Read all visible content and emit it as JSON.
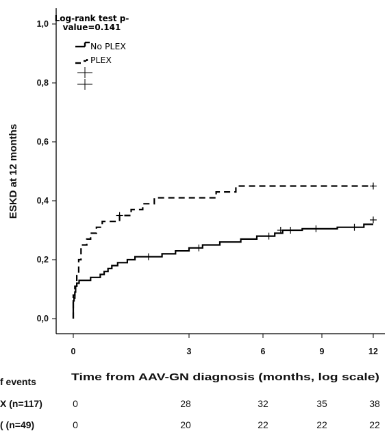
{
  "chart_data": {
    "type": "line",
    "ylabel": "ESKD at 12 months",
    "xlabel": "Time from AAV-GN diagnosis (months, log scale)",
    "xlim": [
      0,
      12
    ],
    "ylim": [
      0,
      1
    ],
    "x_ticks": [
      "0",
      "3",
      "6",
      "9",
      "12"
    ],
    "y_ticks": [
      "0,0",
      "0,2",
      "0,4",
      "0,6",
      "0,8",
      "1,0"
    ],
    "legend_title": "Log-rank test p-value=0.141",
    "legend": {
      "position": "top-left",
      "entries": [
        {
          "label": "No PLEX",
          "style": "solid"
        },
        {
          "label": "PLEX",
          "style": "dashed"
        },
        {
          "label": "",
          "style": "censor"
        },
        {
          "label": "",
          "style": "censor"
        }
      ]
    },
    "series": [
      {
        "name": "No PLEX",
        "style": "solid",
        "steps": [
          [
            0.0,
            0.0
          ],
          [
            0.0,
            0.06
          ],
          [
            0.02,
            0.07
          ],
          [
            0.04,
            0.09
          ],
          [
            0.06,
            0.11
          ],
          [
            0.09,
            0.12
          ],
          [
            0.15,
            0.13
          ],
          [
            0.45,
            0.14
          ],
          [
            0.7,
            0.15
          ],
          [
            0.8,
            0.16
          ],
          [
            0.9,
            0.17
          ],
          [
            1.0,
            0.18
          ],
          [
            1.15,
            0.19
          ],
          [
            1.4,
            0.2
          ],
          [
            1.6,
            0.21
          ],
          [
            2.3,
            0.22
          ],
          [
            2.65,
            0.23
          ],
          [
            3.0,
            0.24
          ],
          [
            3.55,
            0.25
          ],
          [
            4.25,
            0.26
          ],
          [
            5.1,
            0.27
          ],
          [
            5.75,
            0.28
          ],
          [
            6.6,
            0.29
          ],
          [
            7.0,
            0.3
          ],
          [
            8.0,
            0.305
          ],
          [
            9.9,
            0.31
          ],
          [
            11.45,
            0.32
          ]
        ],
        "end_x": 12.0,
        "censored": [
          [
            1.95,
            0.21
          ],
          [
            3.4,
            0.24
          ],
          [
            6.3,
            0.28
          ],
          [
            6.9,
            0.3
          ],
          [
            7.4,
            0.3
          ],
          [
            8.7,
            0.305
          ],
          [
            10.9,
            0.31
          ],
          [
            12.0,
            0.335
          ]
        ]
      },
      {
        "name": "PLEX",
        "style": "dashed",
        "steps": [
          [
            0.0,
            0.0
          ],
          [
            0.0,
            0.08
          ],
          [
            0.04,
            0.11
          ],
          [
            0.09,
            0.15
          ],
          [
            0.14,
            0.2
          ],
          [
            0.2,
            0.25
          ],
          [
            0.35,
            0.27
          ],
          [
            0.45,
            0.29
          ],
          [
            0.6,
            0.31
          ],
          [
            0.75,
            0.33
          ],
          [
            1.2,
            0.35
          ],
          [
            1.5,
            0.37
          ],
          [
            1.8,
            0.39
          ],
          [
            2.1,
            0.41
          ],
          [
            4.1,
            0.43
          ],
          [
            4.9,
            0.45
          ]
        ],
        "end_x": 12.0,
        "censored": [
          [
            1.2,
            0.35
          ],
          [
            12.0,
            0.45
          ]
        ]
      }
    ],
    "risk_table": {
      "title": "f events",
      "columns_x": [
        0,
        3,
        6,
        9,
        12
      ],
      "rows": [
        {
          "label": "X (n=117)",
          "values": [
            "0",
            "28",
            "32",
            "35",
            "38"
          ]
        },
        {
          "label": "( (n=49)",
          "values": [
            "0",
            "20",
            "22",
            "22",
            "22"
          ]
        }
      ]
    }
  }
}
